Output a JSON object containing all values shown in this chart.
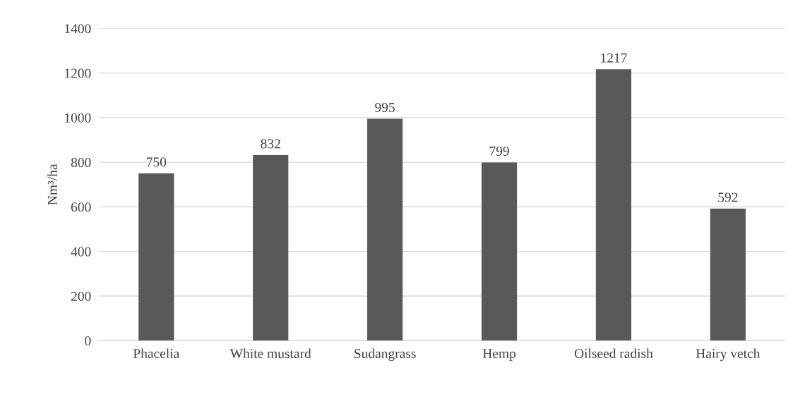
{
  "chart_data": {
    "type": "bar",
    "ylabel": "Nm³/ha",
    "categories": [
      "Phacelia",
      "White mustard",
      "Sudangrass",
      "Hemp",
      "Oilseed radish",
      "Hairy vetch"
    ],
    "values": [
      750,
      832,
      995,
      799,
      1217,
      592
    ],
    "color": "#595959",
    "ylim": [
      0,
      1400
    ],
    "yticks": [
      0,
      200,
      400,
      600,
      800,
      1000,
      1200,
      1400
    ],
    "grid": "y",
    "data_labels": true
  }
}
